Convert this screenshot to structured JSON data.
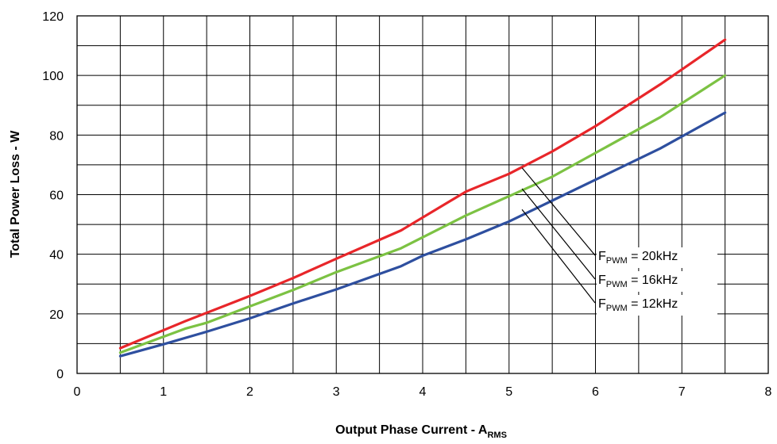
{
  "chart_data": {
    "type": "line",
    "title": "",
    "xlabel": "Output Phase Current - A",
    "xlabel_sub": "RMS",
    "ylabel": "Total Power Loss - W",
    "xlim": [
      0,
      8
    ],
    "ylim": [
      0,
      120
    ],
    "xticks": [
      "0",
      "1",
      "2",
      "3",
      "4",
      "5",
      "6",
      "7",
      "8"
    ],
    "yticks": [
      "0",
      "20",
      "40",
      "60",
      "80",
      "100",
      "120"
    ],
    "x_minor_grid_step": 0.5,
    "y_minor_grid_step": 10,
    "grid": true,
    "series": [
      {
        "name": "F_PWM = 20kHz",
        "label_main": "F",
        "label_sub": "PWM",
        "label_rest": " = 20kHz",
        "color": "#e8262a",
        "x": [
          0.5,
          1.25,
          2,
          2.5,
          3,
          3.75,
          4.5,
          5,
          5.5,
          6,
          6.75,
          7.5
        ],
        "y": [
          8.5,
          17.5,
          26,
          32,
          38.5,
          48,
          61,
          67,
          74.5,
          83,
          97,
          112
        ]
      },
      {
        "name": "F_PWM = 16kHz",
        "label_main": "F",
        "label_sub": "PWM",
        "label_rest": " = 16kHz",
        "color": "#7cc243",
        "x": [
          0.5,
          1.25,
          1.5,
          2,
          2.5,
          3,
          3.75,
          4.5,
          5,
          5.5,
          6,
          6.75,
          7.5
        ],
        "y": [
          7,
          15,
          17,
          22.5,
          28,
          34,
          42,
          53,
          59.5,
          66,
          74,
          86,
          100
        ]
      },
      {
        "name": "F_PWM = 12kHz",
        "label_main": "F",
        "label_sub": "PWM",
        "label_rest": " = 12kHz",
        "color": "#2e4f9f",
        "x": [
          0.5,
          1,
          1.5,
          2,
          2.5,
          3,
          3.75,
          4,
          4.5,
          5,
          5.5,
          6,
          6.75,
          7.5
        ],
        "y": [
          5.8,
          9.8,
          14,
          18.5,
          23.5,
          28.2,
          36,
          39.5,
          45,
          51,
          58,
          65,
          75.5,
          87.5
        ]
      }
    ],
    "annotation_anchors": [
      {
        "series": 0,
        "x": 5.15,
        "y": 69
      },
      {
        "series": 1,
        "x": 5.15,
        "y": 62
      },
      {
        "series": 2,
        "x": 5.15,
        "y": 55
      }
    ]
  }
}
